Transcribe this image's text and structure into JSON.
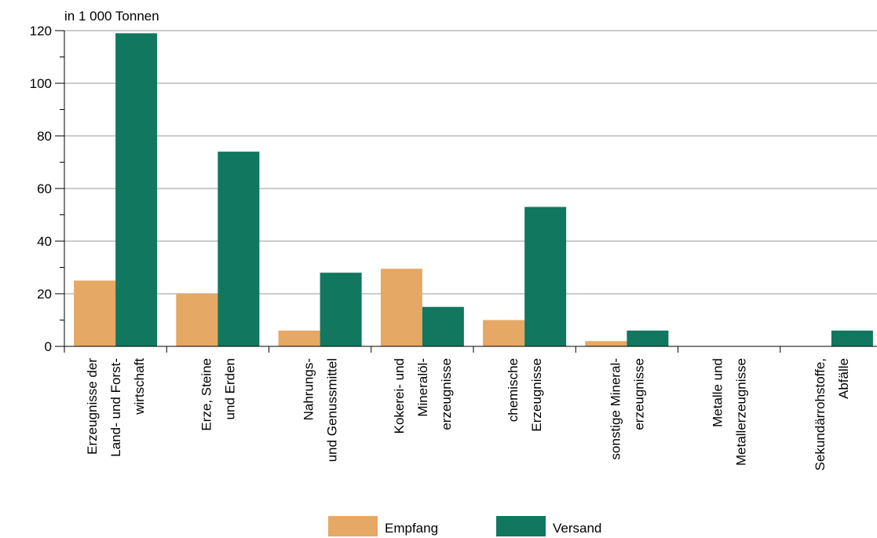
{
  "chart_data": {
    "type": "bar",
    "title": "",
    "xlabel": "",
    "ylabel": "in 1 000 Tonnen",
    "ylim": [
      0,
      120
    ],
    "yticks": [
      0,
      20,
      40,
      60,
      80,
      100,
      120
    ],
    "grid": true,
    "legend_position": "bottom",
    "categories": [
      [
        "Erzeugnisse der",
        "Land- und Forst-",
        "wirtschaft"
      ],
      [
        "Erze, Steine",
        "und Erden"
      ],
      [
        "Nahrungs-",
        "und Genussmittel"
      ],
      [
        "Kokerei- und",
        "Mineralöl-",
        "erzeugnisse"
      ],
      [
        "chemische",
        "Erzeugnisse"
      ],
      [
        "sonstige Mineral-",
        "erzeugnisse"
      ],
      [
        "Metalle und",
        "Metallerzeugnisse"
      ],
      [
        "Sekundärrohstoffe,",
        "Abfälle"
      ]
    ],
    "series": [
      {
        "name": "Empfang",
        "color": "#e5a865",
        "values": [
          25,
          20,
          6,
          29.5,
          10,
          2,
          0,
          0
        ]
      },
      {
        "name": "Versand",
        "color": "#11775e",
        "values": [
          119,
          74,
          28,
          15,
          53,
          6,
          0,
          6
        ]
      }
    ]
  }
}
